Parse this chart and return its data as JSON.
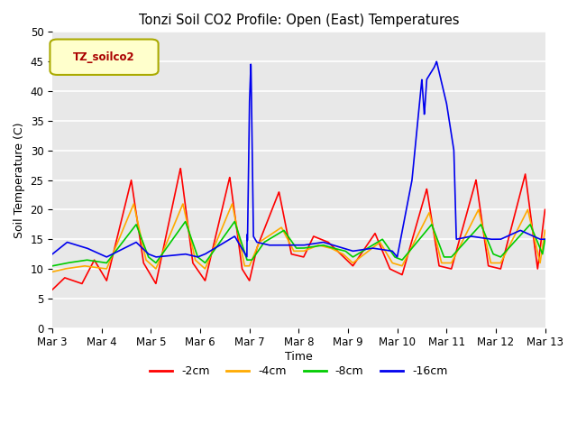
{
  "title": "Tonzi Soil CO2 Profile: Open (East) Temperatures",
  "ylabel": "Soil Temperature (C)",
  "xlabel": "Time",
  "legend_label": "TZ_soilco2",
  "ylim": [
    0,
    50
  ],
  "xlim": [
    0,
    10
  ],
  "bg_color": "#e8e8e8",
  "series": {
    "-2cm": {
      "color": "#ff0000"
    },
    "-4cm": {
      "color": "#ffaa00"
    },
    "-8cm": {
      "color": "#00cc00"
    },
    "-16cm": {
      "color": "#0000ee"
    }
  },
  "x_ticks": [
    0,
    1,
    2,
    3,
    4,
    5,
    6,
    7,
    8,
    9,
    10
  ],
  "x_tick_labels": [
    "Mar 3",
    "Mar 4",
    "Mar 5",
    "Mar 6",
    "Mar 7",
    "Mar 8",
    "Mar 9",
    "Mar 10",
    "Mar 11",
    "Mar 12",
    "Mar 13"
  ],
  "y_ticks": [
    0,
    5,
    10,
    15,
    20,
    25,
    30,
    35,
    40,
    45,
    50
  ]
}
